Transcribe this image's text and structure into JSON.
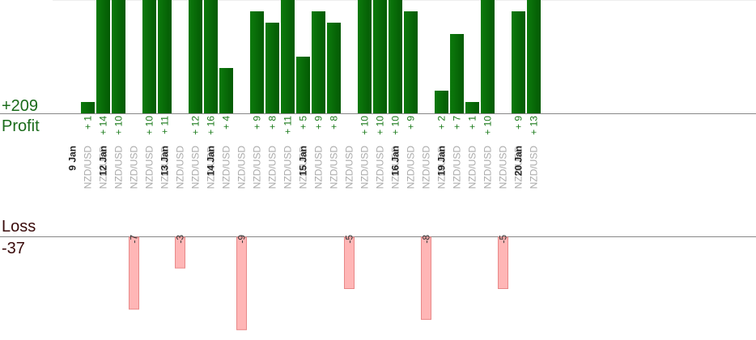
{
  "summary": {
    "profit_total": "+209",
    "profit_label": "Profit",
    "loss_label": "Loss",
    "loss_total": "-37"
  },
  "colors": {
    "profit_bar": "#0a6a0a",
    "loss_bar": "#ffb6b6",
    "profit_text": "#1a6b1a",
    "loss_text": "#333333",
    "axis": "#888888"
  },
  "chart_data": {
    "type": "bar",
    "instrument": "NZD/USD",
    "dates": [
      {
        "label": "9 Jan"
      },
      {
        "label": "12 Jan"
      },
      {
        "label": "13 Jan"
      },
      {
        "label": "14 Jan"
      },
      {
        "label": "15 Jan"
      },
      {
        "label": "16 Jan"
      },
      {
        "label": "19 Jan"
      },
      {
        "label": "20 Jan"
      }
    ],
    "trades": [
      {
        "date": 0,
        "value": 1
      },
      {
        "date": 0,
        "value": 14
      },
      {
        "date": 1,
        "value": 10
      },
      {
        "date": 1,
        "value": -7
      },
      {
        "date": 1,
        "value": 10
      },
      {
        "date": 1,
        "value": 11
      },
      {
        "date": 2,
        "value": -3
      },
      {
        "date": 2,
        "value": 12
      },
      {
        "date": 2,
        "value": 16
      },
      {
        "date": 3,
        "value": 4
      },
      {
        "date": 3,
        "value": -9
      },
      {
        "date": 3,
        "value": 9
      },
      {
        "date": 3,
        "value": 8
      },
      {
        "date": 3,
        "value": 11
      },
      {
        "date": 3,
        "value": 5
      },
      {
        "date": 4,
        "value": 9
      },
      {
        "date": 4,
        "value": 8
      },
      {
        "date": 4,
        "value": -5
      },
      {
        "date": 4,
        "value": 10
      },
      {
        "date": 4,
        "value": 10
      },
      {
        "date": 4,
        "value": 10
      },
      {
        "date": 5,
        "value": 9
      },
      {
        "date": 5,
        "value": -8
      },
      {
        "date": 5,
        "value": 2
      },
      {
        "date": 6,
        "value": 7
      },
      {
        "date": 6,
        "value": 1
      },
      {
        "date": 6,
        "value": 10
      },
      {
        "date": 6,
        "value": -5
      },
      {
        "date": 6,
        "value": 9
      },
      {
        "date": 7,
        "value": 13
      }
    ]
  }
}
